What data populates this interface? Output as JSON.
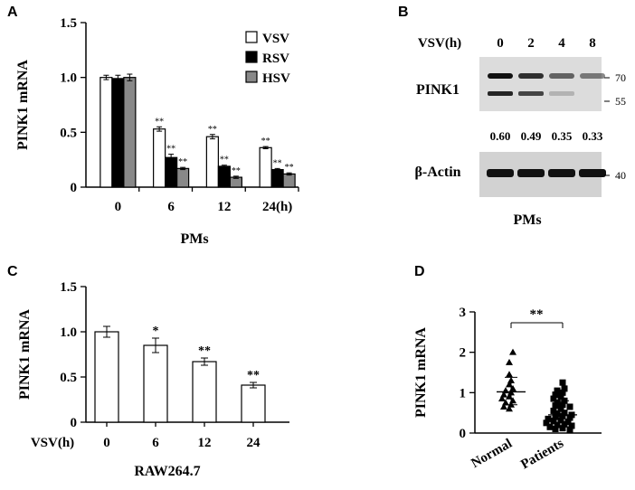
{
  "panels": {
    "A": {
      "letter": "A"
    },
    "B": {
      "letter": "B"
    },
    "C": {
      "letter": "C"
    },
    "D": {
      "letter": "D"
    }
  },
  "chart_data": [
    {
      "panel": "A",
      "type": "bar",
      "ylabel": "PINK1 mRNA",
      "xlabel": "PMs",
      "categories": [
        "0",
        "6",
        "12",
        "24(h)"
      ],
      "ylim": [
        0,
        1.5
      ],
      "yticks": [
        "0",
        "0.5",
        "1.0",
        "1.5"
      ],
      "legend_position": "top-right",
      "series": [
        {
          "name": "VSV",
          "color": "#ffffff",
          "values": [
            1.0,
            0.53,
            0.46,
            0.36
          ],
          "errors": [
            0.02,
            0.02,
            0.02,
            0.01
          ],
          "sig": [
            "",
            "**",
            "**",
            "**"
          ]
        },
        {
          "name": "RSV",
          "color": "#000000",
          "values": [
            0.99,
            0.27,
            0.19,
            0.16
          ],
          "errors": [
            0.03,
            0.03,
            0.01,
            0.01
          ],
          "sig": [
            "",
            "**",
            "**",
            "**"
          ]
        },
        {
          "name": "HSV",
          "color": "#888888",
          "values": [
            1.0,
            0.17,
            0.09,
            0.12
          ],
          "errors": [
            0.03,
            0.01,
            0.01,
            0.01
          ],
          "sig": [
            "",
            "**",
            "**",
            "**"
          ]
        }
      ]
    },
    {
      "panel": "B",
      "type": "blot",
      "xlabel": "PMs",
      "header_label": "VSV(h)",
      "lanes": [
        "0",
        "2",
        "4",
        "8"
      ],
      "row1_label": "PINK1",
      "row2_label": "β-Actin",
      "markers_row1": [
        "70",
        "55"
      ],
      "markers_row2": [
        "40"
      ],
      "ratios": [
        "0.60",
        "0.49",
        "0.35",
        "0.33"
      ],
      "band_upper_intensity": [
        1.0,
        0.85,
        0.6,
        0.5
      ],
      "band_lower_intensity": [
        0.9,
        0.75,
        0.2,
        0.0
      ],
      "actin_intensity": [
        1.0,
        1.0,
        1.0,
        1.0
      ]
    },
    {
      "panel": "C",
      "type": "bar",
      "ylabel": "PINK1 mRNA",
      "xlabel": "RAW264.7",
      "x_prefix": "VSV(h)",
      "categories": [
        "0",
        "6",
        "12",
        "24"
      ],
      "ylim": [
        0,
        1.5
      ],
      "yticks": [
        "0",
        "0.5",
        "1.0",
        "1.5"
      ],
      "values": [
        1.0,
        0.85,
        0.67,
        0.41
      ],
      "errors": [
        0.06,
        0.08,
        0.04,
        0.03
      ],
      "sig": [
        "",
        "*",
        "**",
        "**"
      ]
    },
    {
      "panel": "D",
      "type": "scatter",
      "ylabel": "PINK1 mRNA",
      "categories": [
        "Normal",
        "Patients"
      ],
      "ylim": [
        0,
        3
      ],
      "yticks": [
        "0",
        "1",
        "2",
        "3"
      ],
      "significance": "**",
      "groups": [
        {
          "name": "Normal",
          "marker": "triangle",
          "mean": 1.02,
          "sd_low": 0.7,
          "sd_high": 1.38,
          "points": [
            2.0,
            1.75,
            1.45,
            1.3,
            1.2,
            1.1,
            1.05,
            1.0,
            0.95,
            0.9,
            0.85,
            0.8,
            0.75,
            0.7,
            0.65,
            0.6
          ]
        },
        {
          "name": "Patients",
          "marker": "square",
          "mean": 0.45,
          "sd_low": 0.15,
          "sd_high": 0.8,
          "points": [
            1.25,
            1.1,
            1.05,
            1.0,
            0.95,
            0.9,
            0.85,
            0.8,
            0.75,
            0.7,
            0.68,
            0.65,
            0.6,
            0.55,
            0.5,
            0.48,
            0.45,
            0.42,
            0.4,
            0.38,
            0.35,
            0.32,
            0.3,
            0.28,
            0.25,
            0.22,
            0.2,
            0.18,
            0.15,
            0.12,
            0.1,
            0.08
          ]
        }
      ]
    }
  ]
}
